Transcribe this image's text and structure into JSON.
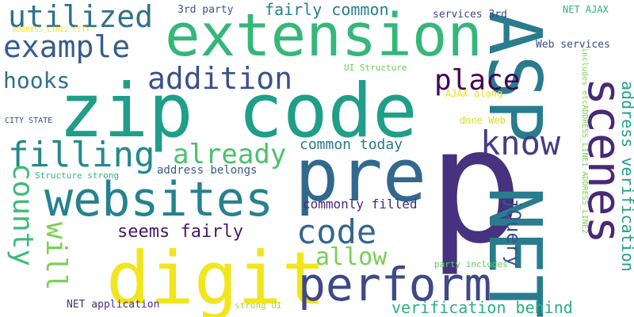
{
  "words": [
    {
      "text": "zip code",
      "color": "#1f9e89"
    },
    {
      "text": "extension",
      "color": "#35b779"
    },
    {
      "text": "p",
      "color": "#46327e"
    },
    {
      "text": "ASP NET",
      "color": "#287c8e"
    },
    {
      "text": "digit",
      "color": "#f1e51d"
    },
    {
      "text": "pre",
      "color": "#31688e"
    },
    {
      "text": "websites",
      "color": "#26828e"
    },
    {
      "text": "perform",
      "color": "#3e4989"
    },
    {
      "text": "scenes",
      "color": "#482878"
    },
    {
      "text": "utilized",
      "color": "#2c728e"
    },
    {
      "text": "example",
      "color": "#365c8d"
    },
    {
      "text": "addition",
      "color": "#3b528b"
    },
    {
      "text": "filling",
      "color": "#23898e"
    },
    {
      "text": "county",
      "color": "#3dbc74"
    },
    {
      "text": "code",
      "color": "#31688e"
    },
    {
      "text": "place",
      "color": "#440154"
    },
    {
      "text": "know",
      "color": "#433e85"
    },
    {
      "text": "hooks",
      "color": "#2c728e"
    },
    {
      "text": "already",
      "color": "#4ac16d"
    },
    {
      "text": "will",
      "color": "#7ad151"
    },
    {
      "text": "allow",
      "color": "#75d054"
    },
    {
      "text": "address verification",
      "color": "#1fa088"
    },
    {
      "text": "jQuery",
      "color": "#3b528b"
    },
    {
      "text": "verification behind",
      "color": "#2ab07f"
    },
    {
      "text": "seems fairly",
      "color": "#48186a"
    },
    {
      "text": "fairly common",
      "color": "#277f8e"
    },
    {
      "text": "common today",
      "color": "#2a788e"
    },
    {
      "text": "commonly filled",
      "color": "#482878"
    },
    {
      "text": "address belongs",
      "color": "#39568c"
    },
    {
      "text": "3rd party",
      "color": "#3b528b"
    },
    {
      "text": "services 3rd",
      "color": "#404688"
    },
    {
      "text": "Web services",
      "color": "#3e4a89"
    },
    {
      "text": "NET AJAX",
      "color": "#2db27d"
    },
    {
      "text": "UI Structure",
      "color": "#6ccd5a"
    },
    {
      "text": "AJAX along",
      "color": "#e2e418"
    },
    {
      "text": "done Web",
      "color": "#d8e219"
    },
    {
      "text": "CITY STATE",
      "color": "#3e4c8a"
    },
    {
      "text": "Structure strong",
      "color": "#2fb47c"
    },
    {
      "text": "NET application",
      "color": "#46307e"
    },
    {
      "text": "strong UI",
      "color": "#a2da37"
    },
    {
      "text": "party includes",
      "color": "#5ec962"
    },
    {
      "text": "includes etcADDRESS_LINE1 ADDRESS_LINE2",
      "color": "#7ad151"
    },
    {
      "text": "ADDRESS_LINE2 CITY",
      "color": "#f2e51d"
    }
  ]
}
